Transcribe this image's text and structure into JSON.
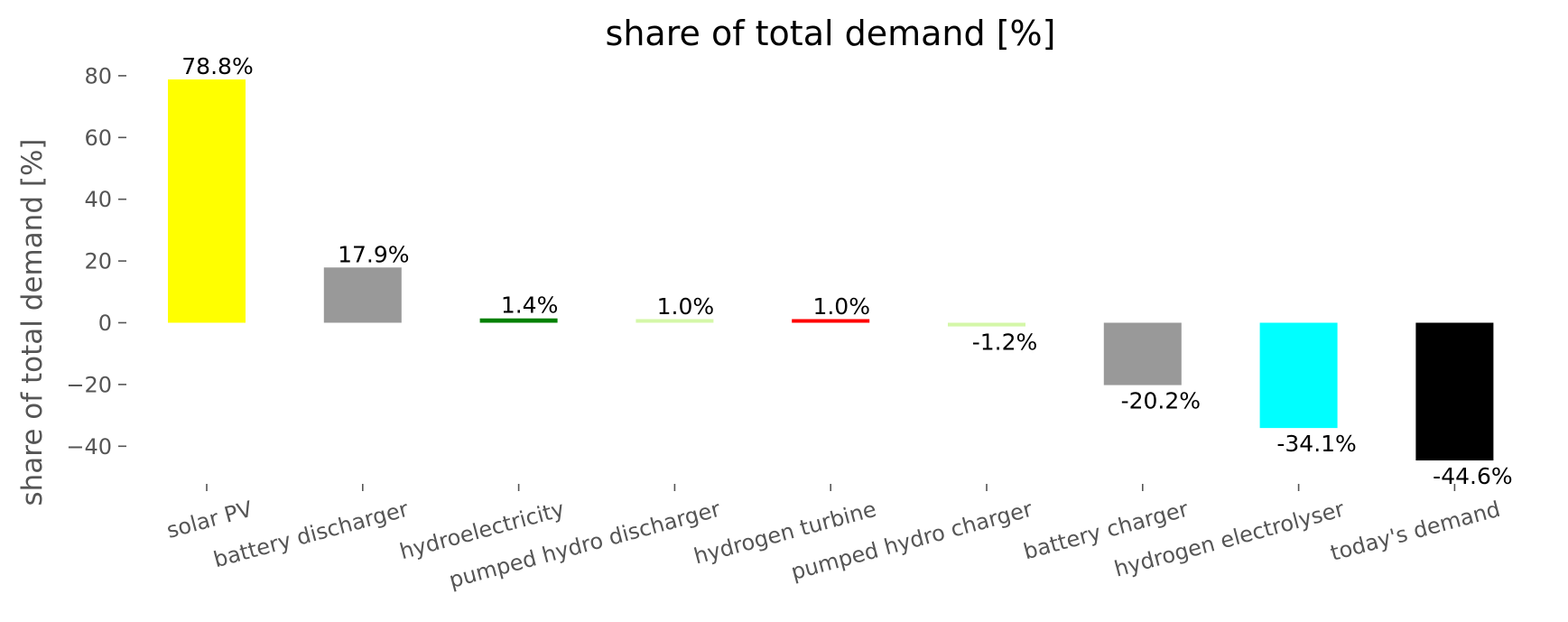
{
  "chart_data": {
    "type": "bar",
    "title": "share of total demand [%]",
    "xlabel": "",
    "ylabel": "share of total demand [%]",
    "ylim": [
      -52,
      88
    ],
    "yticks": [
      80,
      60,
      40,
      20,
      0,
      -20,
      -40
    ],
    "ytick_labels": [
      "80",
      "60",
      "40",
      "20",
      "0",
      "−20",
      "−40"
    ],
    "grid": false,
    "categories": [
      "solar PV",
      "battery discharger",
      "hydroelectricity",
      "pumped hydro discharger",
      "hydrogen turbine",
      "pumped hydro charger",
      "battery charger",
      "hydrogen electrolyser",
      "today's demand"
    ],
    "values": [
      78.8,
      17.9,
      1.4,
      1.0,
      1.0,
      -1.2,
      -20.2,
      -34.1,
      -44.6
    ],
    "data_labels": [
      "78.8%",
      "17.9%",
      "1.4%",
      "1.0%",
      "1.0%",
      "-1.2%",
      "-20.2%",
      "-34.1%",
      "-44.6%"
    ],
    "colors": [
      "#ffff00",
      "#999999",
      "#008000",
      "#d4f7a8",
      "#ff0000",
      "#d4f7a8",
      "#999999",
      "#00ffff",
      "#000000"
    ]
  }
}
